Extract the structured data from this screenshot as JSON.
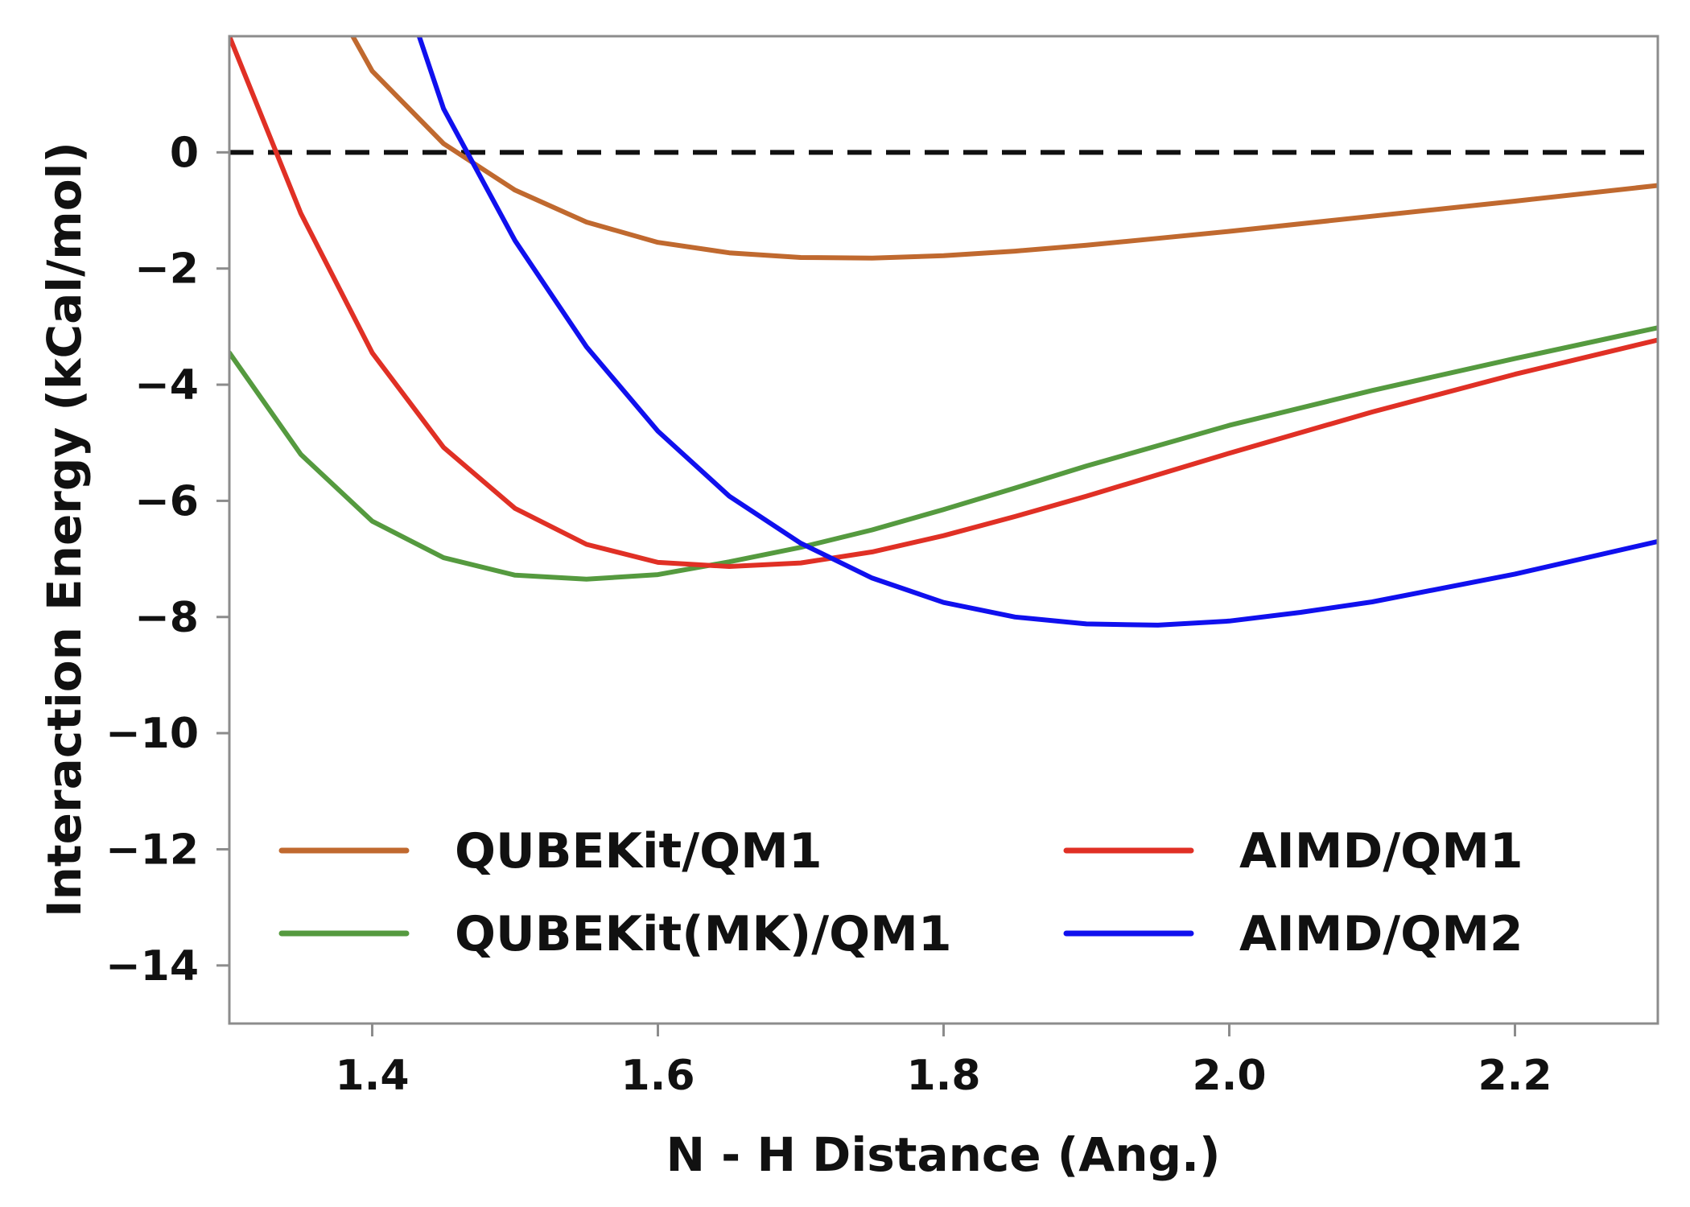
{
  "chart_data": {
    "type": "line",
    "title": "",
    "xlabel": "N - H Distance (Ang.)",
    "ylabel": "Interaction Energy (kCal/mol)",
    "xlim": [
      1.3,
      2.3
    ],
    "ylim": [
      -15,
      2
    ],
    "xticks": [
      1.4,
      1.6,
      1.8,
      2.0,
      2.2
    ],
    "xtick_labels": [
      "1.4",
      "1.6",
      "1.8",
      "2.0",
      "2.2"
    ],
    "yticks": [
      0,
      -2,
      -4,
      -6,
      -8,
      -10,
      -12,
      -14
    ],
    "ytick_labels": [
      "0",
      "−2",
      "−4",
      "−6",
      "−8",
      "−10",
      "−12",
      "−14"
    ],
    "grid": false,
    "legend_position": "lower-center",
    "reference_line": {
      "y": 0,
      "style": "dashed",
      "color": "#111111"
    },
    "series": [
      {
        "name": "QUBEKit/QM1",
        "color": "#c0692f",
        "x": [
          1.35,
          1.4,
          1.45,
          1.5,
          1.55,
          1.6,
          1.65,
          1.7,
          1.75,
          1.8,
          1.85,
          1.9,
          1.95,
          2.0,
          2.1,
          2.2,
          2.3
        ],
        "y": [
          3.6,
          1.4,
          0.15,
          -0.65,
          -1.2,
          -1.55,
          -1.73,
          -1.81,
          -1.82,
          -1.78,
          -1.7,
          -1.6,
          -1.48,
          -1.36,
          -1.1,
          -0.84,
          -0.57
        ]
      },
      {
        "name": "QUBEKit(MK)/QM1",
        "color": "#559a3f",
        "x": [
          1.3,
          1.35,
          1.4,
          1.45,
          1.5,
          1.55,
          1.6,
          1.65,
          1.7,
          1.75,
          1.8,
          1.85,
          1.9,
          2.0,
          2.1,
          2.2,
          2.3
        ],
        "y": [
          -3.45,
          -5.2,
          -6.35,
          -6.98,
          -7.28,
          -7.35,
          -7.27,
          -7.05,
          -6.8,
          -6.5,
          -6.15,
          -5.78,
          -5.4,
          -4.7,
          -4.1,
          -3.55,
          -3.02
        ]
      },
      {
        "name": "AIMD/QM1",
        "color": "#e03025",
        "x": [
          1.3,
          1.35,
          1.4,
          1.45,
          1.5,
          1.55,
          1.6,
          1.65,
          1.7,
          1.75,
          1.8,
          1.85,
          1.9,
          2.0,
          2.1,
          2.2,
          2.3
        ],
        "y": [
          2.0,
          -1.05,
          -3.45,
          -5.08,
          -6.13,
          -6.75,
          -7.06,
          -7.13,
          -7.07,
          -6.88,
          -6.6,
          -6.27,
          -5.92,
          -5.18,
          -4.47,
          -3.82,
          -3.23
        ]
      },
      {
        "name": "AIMD/QM2",
        "color": "#1010ee",
        "x": [
          1.4,
          1.45,
          1.5,
          1.55,
          1.6,
          1.65,
          1.7,
          1.75,
          1.8,
          1.85,
          1.9,
          1.95,
          2.0,
          2.05,
          2.1,
          2.2,
          2.3
        ],
        "y": [
          4.4,
          0.75,
          -1.52,
          -3.35,
          -4.8,
          -5.92,
          -6.73,
          -7.33,
          -7.75,
          -8.0,
          -8.12,
          -8.14,
          -8.07,
          -7.92,
          -7.74,
          -7.26,
          -6.7
        ]
      }
    ]
  }
}
